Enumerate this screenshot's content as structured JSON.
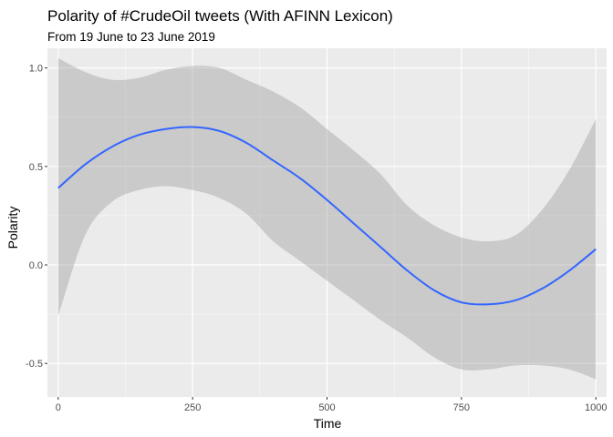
{
  "chart_data": {
    "type": "line",
    "title": "Polarity of #CrudeOil tweets (With AFINN Lexicon)",
    "subtitle": "From 19 June to 23 June 2019",
    "xlabel": "Time",
    "ylabel": "Polarity",
    "xlim": [
      -20,
      1020
    ],
    "ylim": [
      -0.67,
      1.1
    ],
    "x_ticks": [
      0,
      250,
      500,
      750,
      1000
    ],
    "x_tick_labels": [
      "0",
      "250",
      "500",
      "750",
      "1000"
    ],
    "y_ticks": [
      -0.5,
      0.0,
      0.5,
      1.0
    ],
    "y_tick_labels": [
      "-0.5",
      "0.0",
      "0.5",
      "1.0"
    ],
    "grid": true,
    "smooth": {
      "x": [
        0,
        50,
        100,
        150,
        200,
        250,
        300,
        350,
        400,
        450,
        500,
        550,
        600,
        650,
        700,
        750,
        800,
        850,
        900,
        950,
        1000
      ],
      "y": [
        0.39,
        0.51,
        0.6,
        0.66,
        0.69,
        0.7,
        0.68,
        0.62,
        0.53,
        0.44,
        0.33,
        0.21,
        0.09,
        -0.03,
        -0.13,
        -0.19,
        -0.2,
        -0.18,
        -0.12,
        -0.03,
        0.08
      ],
      "lower": [
        -0.26,
        0.15,
        0.32,
        0.38,
        0.4,
        0.38,
        0.34,
        0.26,
        0.12,
        0.02,
        -0.08,
        -0.18,
        -0.28,
        -0.37,
        -0.47,
        -0.53,
        -0.53,
        -0.51,
        -0.51,
        -0.53,
        -0.58
      ],
      "upper": [
        1.05,
        0.98,
        0.94,
        0.95,
        0.99,
        1.01,
        1.0,
        0.94,
        0.88,
        0.8,
        0.69,
        0.58,
        0.46,
        0.3,
        0.2,
        0.14,
        0.12,
        0.15,
        0.28,
        0.48,
        0.74
      ]
    },
    "colors": {
      "panel": "#ebebeb",
      "grid_major": "#ffffff",
      "line": "#3366ff",
      "ribbon": "#999999"
    }
  }
}
